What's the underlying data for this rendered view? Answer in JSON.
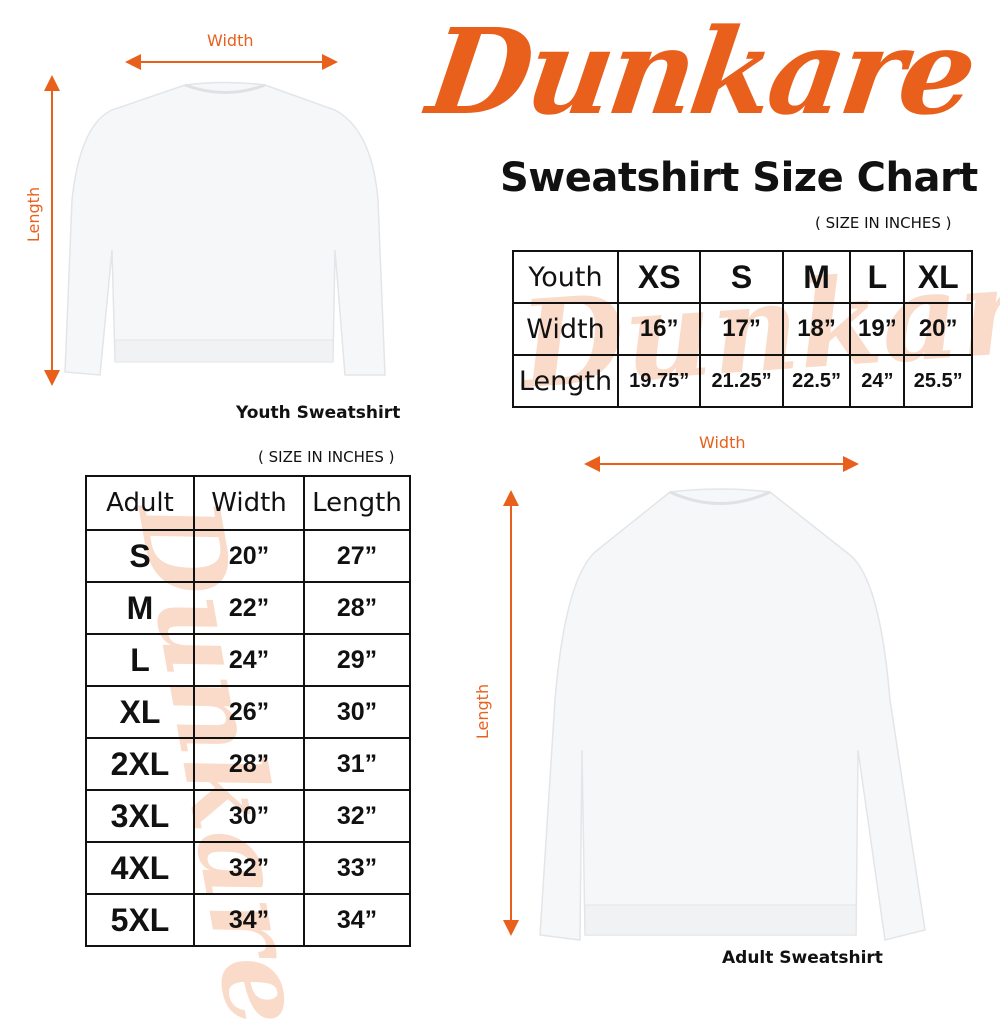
{
  "brand": {
    "logo_text": "Dunkare",
    "accent_color": "#e8601c"
  },
  "title": "Sweatshirt Size Chart",
  "youth": {
    "width_label": "Width",
    "length_label": "Length",
    "caption": "Youth Sweatshirt",
    "unit_note": "( SIZE IN INCHES )",
    "table": {
      "header": [
        "Youth",
        "XS",
        "S",
        "M",
        "L",
        "XL"
      ],
      "rows": [
        [
          "Width",
          "16”",
          "17”",
          "18”",
          "19”",
          "20”"
        ],
        [
          "Length",
          "19.75”",
          "21.25”",
          "22.5”",
          "24”",
          "25.5”"
        ]
      ]
    }
  },
  "adult": {
    "width_label": "Width",
    "length_label": "Length",
    "caption": "Adult Sweatshirt",
    "unit_note": "( SIZE IN INCHES )",
    "table": {
      "header": [
        "Adult",
        "Width",
        "Length"
      ],
      "rows": [
        [
          "S",
          "20”",
          "27”"
        ],
        [
          "M",
          "22”",
          "28”"
        ],
        [
          "L",
          "24”",
          "29”"
        ],
        [
          "XL",
          "26”",
          "30”"
        ],
        [
          "2XL",
          "28”",
          "31”"
        ],
        [
          "3XL",
          "30”",
          "32”"
        ],
        [
          "4XL",
          "32”",
          "33”"
        ],
        [
          "5XL",
          "34”",
          "34”"
        ]
      ]
    }
  }
}
